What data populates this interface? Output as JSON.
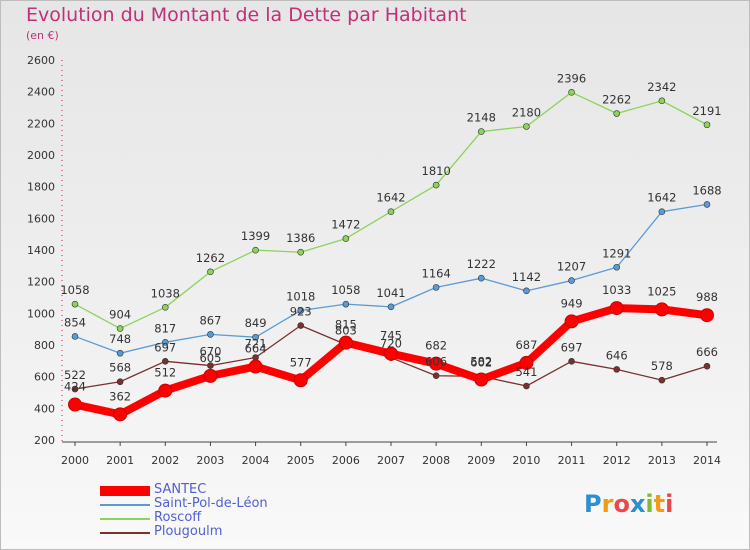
{
  "chart_data": {
    "type": "line",
    "title": "Evolution du Montant de la Dette par Habitant",
    "subtitle": "(en €)",
    "x": [
      "2000",
      "2001",
      "2002",
      "2003",
      "2004",
      "2005",
      "2006",
      "2007",
      "2008",
      "2009",
      "2010",
      "2011",
      "2012",
      "2013",
      "2014"
    ],
    "ylim": [
      200,
      2600
    ],
    "yticks": [
      200,
      400,
      600,
      800,
      1000,
      1200,
      1400,
      1600,
      1800,
      2000,
      2200,
      2400,
      2600
    ],
    "grid": false,
    "legend_position": "bottom-left",
    "series": [
      {
        "name": "SANTEC",
        "color": "#ff0000",
        "values": [
          424,
          362,
          512,
          605,
          664,
          577,
          815,
          745,
          682,
          582,
          687,
          949,
          1033,
          1025,
          988
        ]
      },
      {
        "name": "Saint-Pol-de-Léon",
        "color": "#5b9bd5",
        "values": [
          854,
          748,
          817,
          867,
          849,
          1018,
          1058,
          1041,
          1164,
          1222,
          1142,
          1207,
          1291,
          1642,
          1688
        ]
      },
      {
        "name": "Roscoff",
        "color": "#8cd35a",
        "values": [
          1058,
          904,
          1038,
          1262,
          1399,
          1386,
          1472,
          1642,
          1810,
          2148,
          2180,
          2396,
          2262,
          2342,
          2191
        ]
      },
      {
        "name": "Plougoulm",
        "color": "#7b2f2f",
        "values": [
          522,
          568,
          697,
          670,
          721,
          923,
          803,
          720,
          606,
          602,
          541,
          697,
          646,
          578,
          666
        ]
      }
    ]
  },
  "logo": {
    "letters": [
      "P",
      "r",
      "o",
      "x",
      "i",
      "t",
      "i"
    ]
  }
}
